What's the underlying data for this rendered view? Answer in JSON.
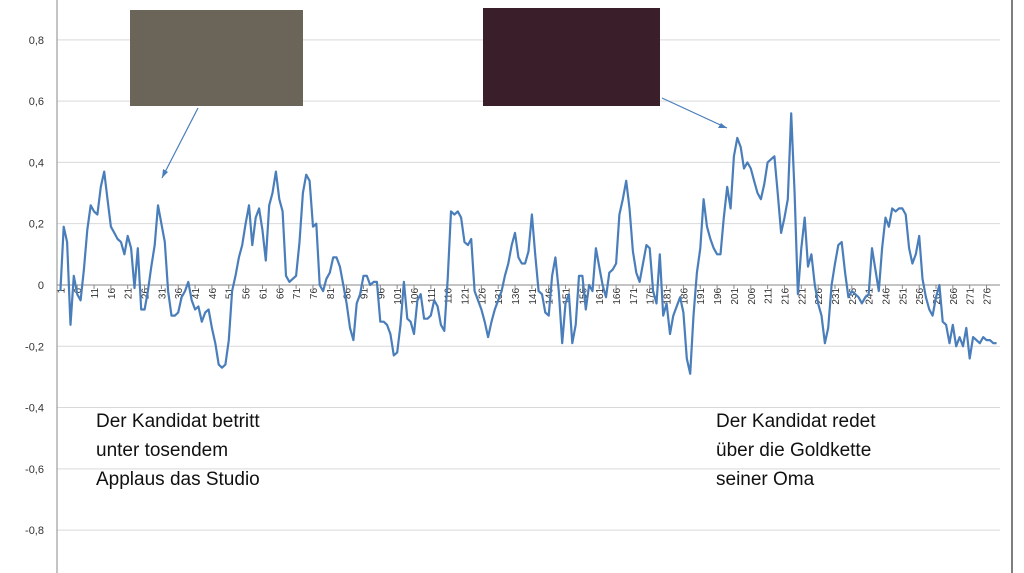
{
  "chart_data": {
    "type": "line",
    "x": [
      1,
      2,
      3,
      4,
      5,
      6,
      7,
      8,
      9,
      10,
      11,
      12,
      13,
      14,
      15,
      16,
      17,
      18,
      19,
      20,
      21,
      22,
      23,
      24,
      25,
      26,
      27,
      28,
      29,
      30,
      31,
      32,
      33,
      34,
      35,
      36,
      37,
      38,
      39,
      40,
      41,
      42,
      43,
      44,
      45,
      46,
      47,
      48,
      49,
      50,
      51,
      52,
      53,
      54,
      55,
      56,
      57,
      58,
      59,
      60,
      61,
      62,
      63,
      64,
      65,
      66,
      67,
      68,
      69,
      70,
      71,
      72,
      73,
      74,
      75,
      76,
      77,
      78,
      79,
      80,
      81,
      82,
      83,
      84,
      85,
      86,
      87,
      88,
      89,
      90,
      91,
      92,
      93,
      94,
      95,
      96,
      97,
      98,
      99,
      100,
      101,
      102,
      103,
      104,
      105,
      106,
      107,
      108,
      109,
      110,
      111,
      112,
      113,
      114,
      115,
      116,
      117,
      118,
      119,
      120,
      121,
      122,
      123,
      124,
      125,
      126,
      127,
      128,
      129,
      130,
      131,
      132,
      133,
      134,
      135,
      136,
      137,
      138,
      139,
      140,
      141,
      142,
      143,
      144,
      145,
      146,
      147,
      148,
      149,
      150,
      151,
      152,
      153,
      154,
      155,
      156,
      157,
      158,
      159,
      160,
      161,
      162,
      163,
      164,
      165,
      166,
      167,
      168,
      169,
      170,
      171,
      172,
      173,
      174,
      175,
      176,
      177,
      178,
      179,
      180,
      181,
      182,
      183,
      184,
      185,
      186,
      187,
      188,
      189,
      190,
      191,
      192,
      193,
      194,
      195,
      196,
      197,
      198,
      199,
      200,
      201,
      202,
      203,
      204,
      205,
      206,
      207,
      208,
      209,
      210,
      211,
      212,
      213,
      214,
      215,
      216,
      217,
      218,
      219,
      220,
      221,
      222,
      223,
      224,
      225,
      226,
      227,
      228,
      229,
      230,
      231,
      232,
      233,
      234,
      235,
      236,
      237,
      238,
      239,
      240,
      241,
      242,
      243,
      244,
      245,
      246,
      247,
      248,
      249,
      250,
      251,
      252,
      253,
      254,
      255,
      256,
      257,
      258,
      259,
      260,
      261,
      262,
      263,
      264,
      265,
      266,
      267,
      268,
      269,
      270,
      271,
      272,
      273,
      274,
      275,
      276,
      277,
      278,
      279
    ],
    "series": [
      {
        "color": "#4a7ebb",
        "values": [
          -0.02,
          0.19,
          0.14,
          -0.13,
          0.03,
          -0.03,
          -0.05,
          0.05,
          0.18,
          0.26,
          0.24,
          0.23,
          0.32,
          0.37,
          0.28,
          0.19,
          0.17,
          0.15,
          0.14,
          0.1,
          0.16,
          0.12,
          -0.01,
          0.12,
          -0.08,
          -0.08,
          -0.02,
          0.06,
          0.13,
          0.26,
          0.2,
          0.14,
          -0.02,
          -0.1,
          -0.1,
          -0.09,
          -0.04,
          -0.02,
          0.01,
          -0.05,
          -0.08,
          -0.07,
          -0.12,
          -0.09,
          -0.08,
          -0.14,
          -0.19,
          -0.26,
          -0.27,
          -0.26,
          -0.18,
          -0.02,
          0.03,
          0.09,
          0.13,
          0.2,
          0.26,
          0.13,
          0.22,
          0.25,
          0.18,
          0.08,
          0.26,
          0.3,
          0.37,
          0.28,
          0.24,
          0.03,
          0.01,
          0.02,
          0.03,
          0.14,
          0.3,
          0.36,
          0.34,
          0.19,
          0.2,
          0.0,
          -0.02,
          0.02,
          0.04,
          0.09,
          0.09,
          0.06,
          0.0,
          -0.06,
          -0.14,
          -0.18,
          -0.06,
          -0.03,
          0.03,
          0.03,
          0.0,
          0.01,
          0.01,
          -0.12,
          -0.12,
          -0.13,
          -0.16,
          -0.23,
          -0.22,
          -0.13,
          0.01,
          -0.11,
          -0.12,
          -0.16,
          -0.05,
          -0.03,
          -0.11,
          -0.11,
          -0.1,
          -0.05,
          -0.07,
          -0.13,
          -0.15,
          0.02,
          0.24,
          0.23,
          0.24,
          0.22,
          0.14,
          0.13,
          0.15,
          -0.02,
          -0.05,
          -0.08,
          -0.12,
          -0.17,
          -0.12,
          -0.08,
          -0.05,
          -0.02,
          0.03,
          0.07,
          0.13,
          0.17,
          0.09,
          0.07,
          0.07,
          0.11,
          0.23,
          0.1,
          -0.02,
          -0.03,
          -0.09,
          -0.1,
          0.03,
          0.09,
          -0.02,
          -0.19,
          -0.06,
          -0.03,
          -0.19,
          -0.13,
          0.03,
          0.03,
          -0.08,
          0.0,
          -0.02,
          0.12,
          0.06,
          0.0,
          -0.04,
          0.04,
          0.05,
          0.07,
          0.23,
          0.28,
          0.34,
          0.25,
          0.11,
          0.04,
          0.01,
          0.07,
          0.13,
          0.12,
          -0.02,
          -0.06,
          0.1,
          -0.1,
          -0.06,
          -0.16,
          -0.1,
          -0.07,
          -0.04,
          -0.09,
          -0.24,
          -0.29,
          -0.1,
          0.04,
          0.12,
          0.28,
          0.19,
          0.15,
          0.12,
          0.1,
          0.1,
          0.22,
          0.32,
          0.25,
          0.42,
          0.48,
          0.45,
          0.38,
          0.4,
          0.38,
          0.34,
          0.3,
          0.28,
          0.33,
          0.4,
          0.41,
          0.42,
          0.3,
          0.17,
          0.22,
          0.28,
          0.56,
          0.3,
          -0.03,
          0.12,
          0.22,
          0.06,
          0.1,
          0.0,
          -0.06,
          -0.1,
          -0.19,
          -0.14,
          0.0,
          0.07,
          0.13,
          0.14,
          0.04,
          -0.04,
          -0.02,
          -0.03,
          -0.04,
          -0.06,
          -0.04,
          -0.03,
          0.12,
          0.05,
          -0.02,
          0.12,
          0.22,
          0.19,
          0.25,
          0.24,
          0.25,
          0.25,
          0.23,
          0.12,
          0.07,
          0.1,
          0.16,
          0.02,
          -0.04,
          -0.08,
          -0.1,
          -0.04,
          0.0,
          -0.12,
          -0.13,
          -0.19,
          -0.13,
          -0.2,
          -0.17,
          -0.2,
          -0.14,
          -0.24,
          -0.17,
          -0.18,
          -0.19,
          -0.17,
          -0.18,
          -0.18,
          -0.19,
          -0.19
        ]
      }
    ],
    "xlim": [
      0,
      280
    ],
    "xticks": [
      1,
      6,
      11,
      16,
      21,
      26,
      31,
      36,
      41,
      46,
      51,
      56,
      61,
      66,
      71,
      76,
      81,
      86,
      91,
      96,
      101,
      106,
      111,
      116,
      121,
      126,
      131,
      136,
      141,
      146,
      151,
      156,
      161,
      166,
      171,
      176,
      181,
      186,
      191,
      196,
      201,
      206,
      211,
      216,
      221,
      226,
      231,
      236,
      241,
      246,
      251,
      256,
      261,
      266,
      271,
      276
    ],
    "ylim": [
      -0.94,
      0.93
    ],
    "yticks": [
      {
        "value": -0.8,
        "label": "-0,8"
      },
      {
        "value": -0.6,
        "label": "-0,6"
      },
      {
        "value": -0.4,
        "label": "-0,4"
      },
      {
        "value": -0.2,
        "label": "-0,2"
      },
      0,
      {
        "value": 0.2,
        "label": "0,2"
      },
      {
        "value": 0.4,
        "label": "0,4"
      },
      {
        "value": 0.6,
        "label": "0,6"
      },
      {
        "value": 0.8,
        "label": "0,8"
      }
    ],
    "grid": true,
    "annotations": [
      [
        "Der Kandidat betritt",
        "unter tosendem",
        "Applaus das Studio"
      ],
      [
        "Der Kandidat redet",
        "über die Goldkette",
        "seiner Oma"
      ]
    ]
  }
}
